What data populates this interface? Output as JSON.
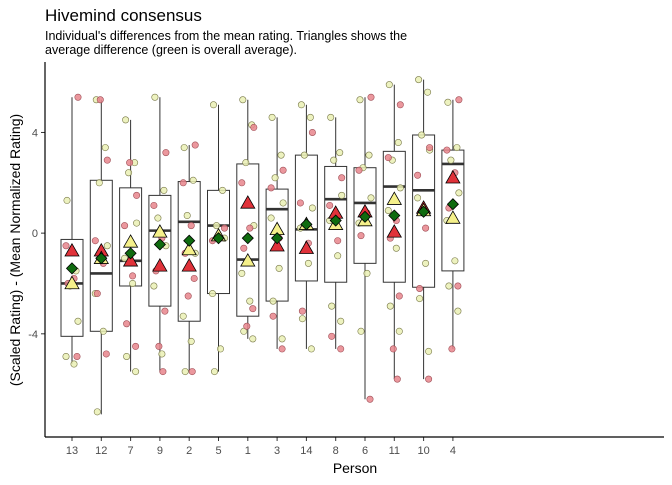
{
  "chart_data": {
    "type": "box",
    "title": "Hivemind consensus",
    "subtitle_lines": [
      "Individual's differences from the mean rating. Triangles shows the",
      "average difference (green is overall average)."
    ],
    "xlabel": "Person",
    "ylabel": "(Scaled Rating) - (Mean Normalized Rating)",
    "categories": [
      "13",
      "12",
      "7",
      "9",
      "2",
      "5",
      "1",
      "3",
      "14",
      "8",
      "6",
      "11",
      "10",
      "4"
    ],
    "ylim": [
      -8.1,
      6.8
    ],
    "yticks": [
      -4,
      0,
      4
    ],
    "ytick_labels": [
      "-4",
      "0",
      "4"
    ],
    "grid": false,
    "colors": {
      "red_fill": "#e0323a",
      "yellow_fill": "#f5f08a",
      "green_fill": "#0f6b0f",
      "red_point": "#e8858c",
      "yellow_point": "#eaf0b4",
      "box_stroke": "#333333",
      "axis": "#000000"
    },
    "boxes": [
      {
        "q1": -4.1,
        "median": -2.0,
        "q3": -0.25,
        "whisker_low": -5.2,
        "whisker_high": 5.4
      },
      {
        "q1": -3.9,
        "median": -1.6,
        "q3": 2.1,
        "whisker_low": -7.2,
        "whisker_high": 5.3
      },
      {
        "q1": -2.1,
        "median": -1.1,
        "q3": 1.8,
        "whisker_low": -5.5,
        "whisker_high": 4.5
      },
      {
        "q1": -2.9,
        "median": 0.1,
        "q3": 1.5,
        "whisker_low": -5.5,
        "whisker_high": 5.4
      },
      {
        "q1": -3.5,
        "median": 0.45,
        "q3": 2.05,
        "whisker_low": -5.5,
        "whisker_high": 3.5
      },
      {
        "q1": -2.4,
        "median": 0.3,
        "q3": 1.7,
        "whisker_low": -5.5,
        "whisker_high": 5.1
      },
      {
        "q1": -3.3,
        "median": -1.05,
        "q3": 2.75,
        "whisker_low": -4.2,
        "whisker_high": 5.3
      },
      {
        "q1": -2.7,
        "median": 0.95,
        "q3": 1.75,
        "whisker_low": -4.6,
        "whisker_high": 4.6
      },
      {
        "q1": -1.9,
        "median": 0.15,
        "q3": 3.1,
        "whisker_low": -4.6,
        "whisker_high": 5.1
      },
      {
        "q1": -1.95,
        "median": 1.35,
        "q3": 2.65,
        "whisker_low": -4.6,
        "whisker_high": 4.6
      },
      {
        "q1": -1.2,
        "median": 1.2,
        "q3": 2.6,
        "whisker_low": -6.6,
        "whisker_high": 5.4
      },
      {
        "q1": -1.95,
        "median": 1.85,
        "q3": 3.25,
        "whisker_low": -5.8,
        "whisker_high": 5.9
      },
      {
        "q1": -2.15,
        "median": 1.7,
        "q3": 3.9,
        "whisker_low": -5.8,
        "whisker_high": 6.1
      },
      {
        "q1": -1.5,
        "median": 2.75,
        "q3": 3.3,
        "whisker_low": -4.6,
        "whisker_high": 5.3
      }
    ],
    "red_triangles": [
      -0.7,
      -0.7,
      -1.1,
      -1.3,
      -1.3,
      null,
      1.2,
      -0.5,
      -0.6,
      0.8,
      0.85,
      0.05,
      1.0,
      2.2
    ],
    "yellow_triangles": [
      -2.0,
      -1.0,
      -0.35,
      0.05,
      -0.65,
      -0.1,
      -1.1,
      0.15,
      0.35,
      0.35,
      0.5,
      1.35,
      0.9,
      0.6
    ],
    "green_diamonds": [
      -1.4,
      -1.0,
      -0.8,
      -0.45,
      -0.3,
      -0.2,
      -0.2,
      -0.2,
      0.35,
      0.5,
      0.65,
      0.7,
      0.85,
      1.15
    ],
    "red_points": [
      [
        5.4,
        -0.5,
        -1.8,
        -2.0,
        -4.9
      ],
      [
        2.9,
        -0.3,
        -1.2,
        -2.4,
        -4.8,
        5.3
      ],
      [
        1.5,
        0.3,
        -1.7,
        -3.6,
        -4.5,
        2.8
      ],
      [
        3.2,
        1.1,
        -0.2,
        -1.5,
        -3.1,
        -4.5,
        -5.5
      ],
      [
        3.5,
        2.0,
        0.3,
        -0.8,
        -1.8,
        -2.5,
        -5.5
      ],
      [
        0.2,
        -0.3
      ],
      [
        4.2,
        2.0,
        0.2,
        -0.6,
        -3.0,
        -3.7
      ],
      [
        2.5,
        1.8,
        -0.2,
        -3.3,
        -4.6
      ],
      [
        4.0,
        1.2,
        -0.4,
        -3.1
      ],
      [
        2.2,
        1.1,
        -0.3,
        -4.1,
        -4.6
      ],
      [
        5.4,
        2.5,
        0.8,
        -0.1,
        -6.6
      ],
      [
        5.1,
        3.0,
        0.5,
        -0.2,
        -2.5,
        -4.6,
        -5.8
      ],
      [
        3.4,
        2.3,
        0.2,
        -2.2,
        -5.8
      ],
      [
        5.3,
        3.3,
        2.4,
        1.0,
        -2.1,
        -4.6
      ]
    ],
    "yellow_points": [
      [
        1.3,
        -1.5,
        -2.1,
        -3.5,
        -4.9,
        -5.2
      ],
      [
        5.3,
        3.4,
        2.0,
        -0.5,
        -2.4,
        -3.9,
        -7.1
      ],
      [
        4.5,
        2.8,
        2.4,
        0.4,
        -1.0,
        -2.0,
        -4.9,
        -5.5
      ],
      [
        5.4,
        1.7,
        0.6,
        -0.5,
        -2.1,
        -4.8
      ],
      [
        3.4,
        2.1,
        0.7,
        -0.8,
        -3.3,
        -4.3,
        -5.5
      ],
      [
        5.1,
        1.7,
        0.3,
        -0.2,
        -2.4,
        -4.6,
        -5.5
      ],
      [
        5.3,
        4.3,
        2.8,
        0.3,
        -1.6,
        -2.7,
        -3.9,
        -4.2
      ],
      [
        4.6,
        3.1,
        2.2,
        1.2,
        0.6,
        -1.4,
        -2.7,
        -4.2
      ],
      [
        5.1,
        4.6,
        3.1,
        1.0,
        0.2,
        -1.2,
        -3.4,
        -4.6
      ],
      [
        4.6,
        3.2,
        2.9,
        1.5,
        0.5,
        -0.9,
        -2.9,
        -3.5
      ],
      [
        5.3,
        3.1,
        2.6,
        1.4,
        0.4,
        -1.6,
        -3.9
      ],
      [
        5.9,
        3.6,
        2.9,
        1.8,
        0.9,
        -0.6,
        -2.9,
        -3.9
      ],
      [
        6.1,
        5.6,
        3.9,
        3.3,
        1.4,
        -1.2,
        -2.6,
        -4.7
      ],
      [
        5.2,
        3.4,
        2.9,
        1.6,
        0.5,
        -1.1,
        -2.1,
        -3.1
      ]
    ]
  }
}
